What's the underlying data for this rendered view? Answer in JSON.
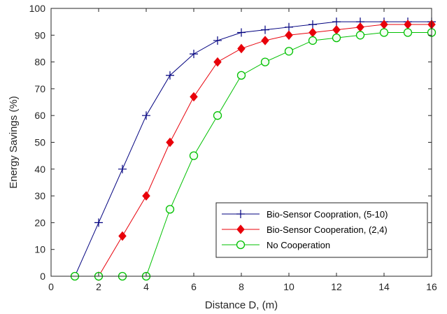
{
  "chart_data": {
    "type": "line",
    "title": "",
    "xlabel": "Distance D, (m)",
    "ylabel": "Energy Savings (%)",
    "xlim": [
      0,
      16
    ],
    "ylim": [
      0,
      100
    ],
    "xticks": [
      0,
      2,
      4,
      6,
      8,
      10,
      12,
      14,
      16
    ],
    "yticks": [
      0,
      10,
      20,
      30,
      40,
      50,
      60,
      70,
      80,
      90,
      100
    ],
    "grid": false,
    "legend_position": "bottom-right",
    "series": [
      {
        "name": "Bio-Sensor Coopration, (5-10)",
        "color": "#00007f",
        "marker": "plus",
        "x": [
          1,
          2,
          3,
          4,
          5,
          6,
          7,
          8,
          9,
          10,
          11,
          12,
          13,
          14,
          15,
          16
        ],
        "y": [
          0,
          20,
          40,
          60,
          75,
          83,
          88,
          91,
          92,
          93,
          94,
          95,
          95,
          95,
          95,
          95
        ]
      },
      {
        "name": "Bio-Sensor Cooperation, (2,4)",
        "color": "#e8000a",
        "marker": "diamond",
        "x": [
          2,
          3,
          4,
          5,
          6,
          7,
          8,
          9,
          10,
          11,
          12,
          13,
          14,
          15,
          16
        ],
        "y": [
          0,
          15,
          30,
          50,
          67,
          80,
          85,
          88,
          90,
          91,
          92,
          93,
          94,
          94,
          94
        ]
      },
      {
        "name": "No Cooperation",
        "color": "#00c000",
        "marker": "circle",
        "x": [
          1,
          2,
          3,
          4,
          5,
          6,
          7,
          8,
          9,
          10,
          11,
          12,
          13,
          14,
          15,
          16
        ],
        "y": [
          0,
          0,
          0,
          0,
          25,
          45,
          60,
          75,
          80,
          84,
          88,
          89,
          90,
          91,
          91,
          91
        ]
      }
    ]
  }
}
